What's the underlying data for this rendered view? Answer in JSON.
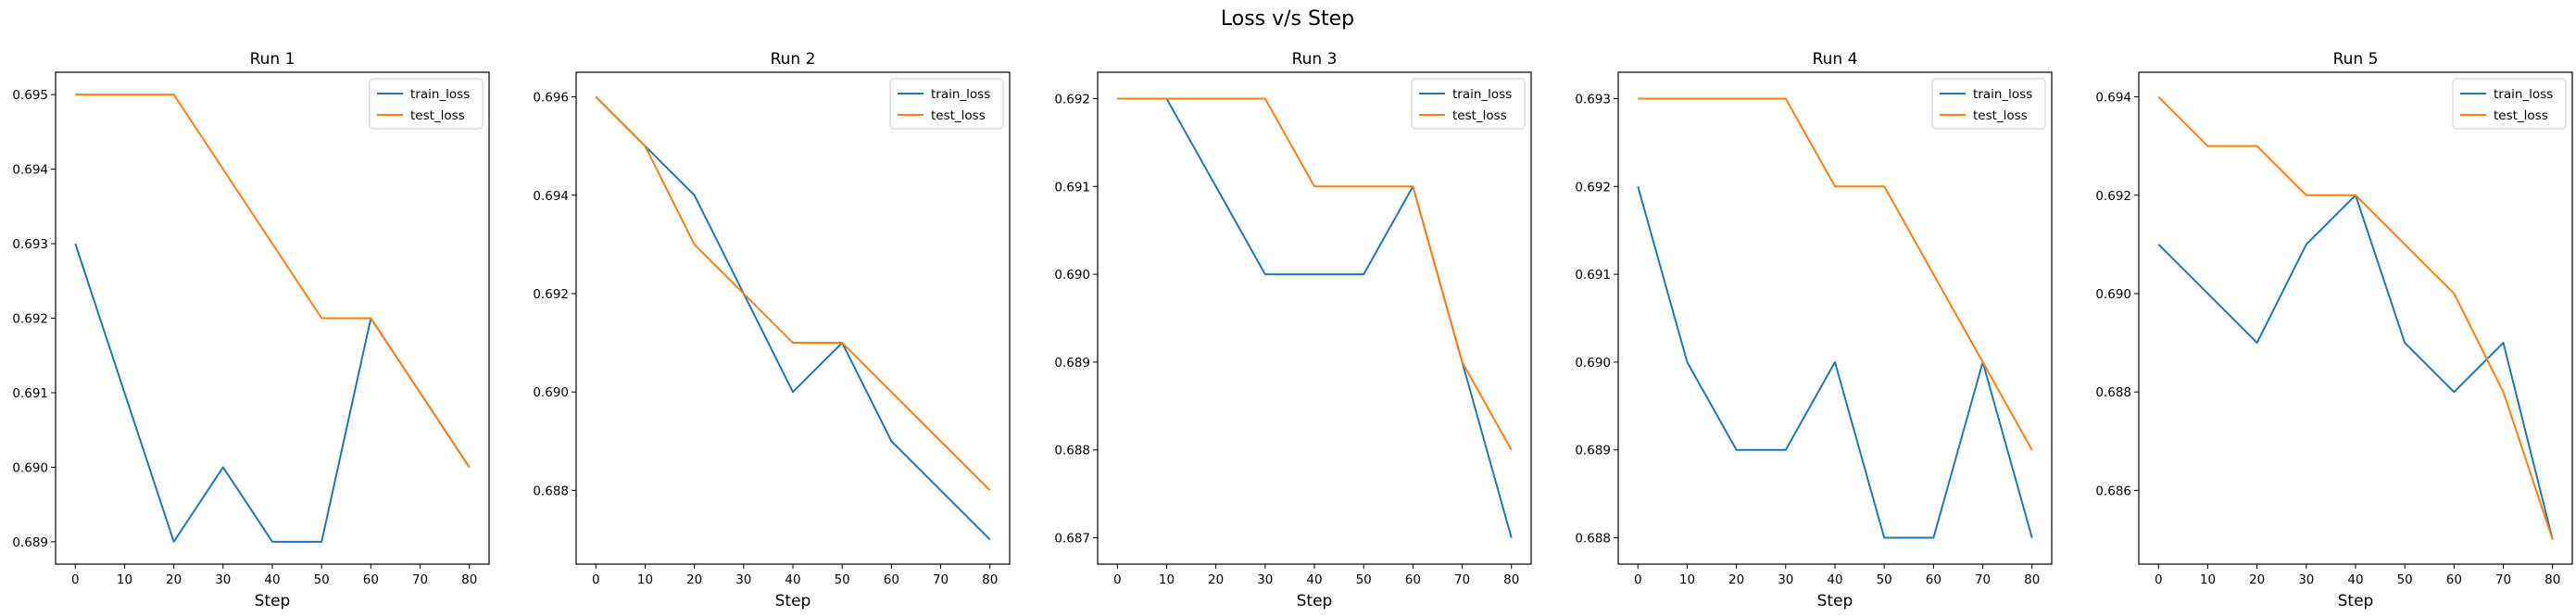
{
  "figure": {
    "title": "Loss v/s Step",
    "colors": {
      "train_loss": "#1f77b4",
      "test_loss": "#ff7f0e"
    }
  },
  "chart_data": [
    {
      "type": "line",
      "title": "Run 1",
      "xlabel": "Step",
      "ylabel": "",
      "x": [
        0,
        10,
        20,
        30,
        40,
        50,
        60,
        70,
        80
      ],
      "xticks": [
        0,
        10,
        20,
        30,
        40,
        50,
        60,
        70,
        80
      ],
      "xlim": [
        -4,
        84
      ],
      "ylim": [
        0.6887,
        0.6953
      ],
      "yticks": [
        0.689,
        0.69,
        0.691,
        0.692,
        0.693,
        0.694,
        0.695
      ],
      "legend": "upper right",
      "series": [
        {
          "name": "train_loss",
          "values": [
            0.693,
            0.691,
            0.689,
            0.69,
            0.689,
            0.689,
            0.692,
            0.691,
            0.69
          ]
        },
        {
          "name": "test_loss",
          "values": [
            0.695,
            0.695,
            0.695,
            0.694,
            0.693,
            0.692,
            0.692,
            0.691,
            0.69
          ]
        }
      ]
    },
    {
      "type": "line",
      "title": "Run 2",
      "xlabel": "Step",
      "ylabel": "",
      "x": [
        0,
        10,
        20,
        30,
        40,
        50,
        60,
        70,
        80
      ],
      "xticks": [
        0,
        10,
        20,
        30,
        40,
        50,
        60,
        70,
        80
      ],
      "xlim": [
        -4,
        84
      ],
      "ylim": [
        0.6865,
        0.6965
      ],
      "yticks": [
        0.688,
        0.69,
        0.692,
        0.694,
        0.696
      ],
      "legend": "upper right",
      "series": [
        {
          "name": "train_loss",
          "values": [
            0.696,
            0.695,
            0.694,
            0.692,
            0.69,
            0.691,
            0.689,
            0.688,
            0.687
          ]
        },
        {
          "name": "test_loss",
          "values": [
            0.696,
            0.695,
            0.693,
            0.692,
            0.691,
            0.691,
            0.69,
            0.689,
            0.688
          ]
        }
      ]
    },
    {
      "type": "line",
      "title": "Run 3",
      "xlabel": "Step",
      "ylabel": "",
      "x": [
        0,
        10,
        20,
        30,
        40,
        50,
        60,
        70,
        80
      ],
      "xticks": [
        0,
        10,
        20,
        30,
        40,
        50,
        60,
        70,
        80
      ],
      "xlim": [
        -4,
        84
      ],
      "ylim": [
        0.6867,
        0.6923
      ],
      "yticks": [
        0.687,
        0.688,
        0.689,
        0.69,
        0.691,
        0.692
      ],
      "legend": "upper right",
      "series": [
        {
          "name": "train_loss",
          "values": [
            0.692,
            0.692,
            0.691,
            0.69,
            0.69,
            0.69,
            0.691,
            0.689,
            0.687
          ]
        },
        {
          "name": "test_loss",
          "values": [
            0.692,
            0.692,
            0.692,
            0.692,
            0.691,
            0.691,
            0.691,
            0.689,
            0.688
          ]
        }
      ]
    },
    {
      "type": "line",
      "title": "Run 4",
      "xlabel": "Step",
      "ylabel": "",
      "x": [
        0,
        10,
        20,
        30,
        40,
        50,
        60,
        70,
        80
      ],
      "xticks": [
        0,
        10,
        20,
        30,
        40,
        50,
        60,
        70,
        80
      ],
      "xlim": [
        -4,
        84
      ],
      "ylim": [
        0.6877,
        0.6933
      ],
      "yticks": [
        0.688,
        0.689,
        0.69,
        0.691,
        0.692,
        0.693
      ],
      "legend": "upper right",
      "series": [
        {
          "name": "train_loss",
          "values": [
            0.692,
            0.69,
            0.689,
            0.689,
            0.69,
            0.688,
            0.688,
            0.69,
            0.688
          ]
        },
        {
          "name": "test_loss",
          "values": [
            0.693,
            0.693,
            0.693,
            0.693,
            0.692,
            0.692,
            0.691,
            0.69,
            0.689
          ]
        }
      ]
    },
    {
      "type": "line",
      "title": "Run 5",
      "xlabel": "Step",
      "ylabel": "",
      "x": [
        0,
        10,
        20,
        30,
        40,
        50,
        60,
        70,
        80
      ],
      "xticks": [
        0,
        10,
        20,
        30,
        40,
        50,
        60,
        70,
        80
      ],
      "xlim": [
        -4,
        84
      ],
      "ylim": [
        0.6845,
        0.6945
      ],
      "yticks": [
        0.686,
        0.688,
        0.69,
        0.692,
        0.694
      ],
      "legend": "upper right",
      "series": [
        {
          "name": "train_loss",
          "values": [
            0.691,
            0.69,
            0.689,
            0.691,
            0.692,
            0.689,
            0.688,
            0.689,
            0.685
          ]
        },
        {
          "name": "test_loss",
          "values": [
            0.694,
            0.693,
            0.693,
            0.692,
            0.692,
            0.691,
            0.69,
            0.688,
            0.685
          ]
        }
      ]
    }
  ]
}
